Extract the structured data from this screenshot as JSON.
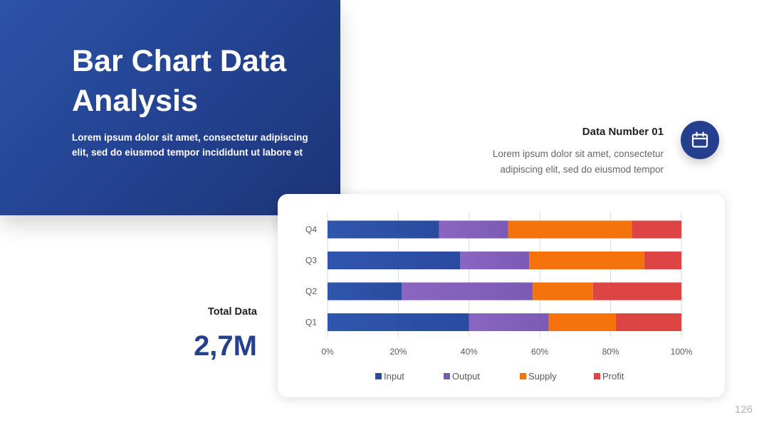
{
  "hero": {
    "title_line1": "Bar Chart Data",
    "title_line2": "Analysis",
    "body": "Lorem ipsum dolor sit amet, consectetur adipiscing elit, sed do eiusmod tempor incididunt ut labore et"
  },
  "info": {
    "title": "Data Number 01",
    "body": "Lorem ipsum dolor sit amet, consectetur adipiscing elit, sed do eiusmod tempor",
    "icon": "calendar-icon"
  },
  "total": {
    "label": "Total Data",
    "value": "2,7M"
  },
  "page_number": "126",
  "colors": {
    "primary": "#24418e",
    "input": "#2a4b9f",
    "output": "#7b5ab5",
    "supply": "#f5730d",
    "profit": "#dd4444"
  },
  "chart_data": {
    "type": "bar",
    "orientation": "horizontal",
    "stacked": "percent",
    "categories": [
      "Q1",
      "Q2",
      "Q3",
      "Q4"
    ],
    "series": [
      {
        "name": "Input",
        "values": [
          40,
          21,
          37.5,
          31.5
        ],
        "color": "#2a4b9f"
      },
      {
        "name": "Output",
        "values": [
          22.5,
          37,
          19.5,
          19.5
        ],
        "color": "#7b5ab5"
      },
      {
        "name": "Supply",
        "values": [
          19,
          17,
          32.5,
          35
        ],
        "color": "#f5730d"
      },
      {
        "name": "Profit",
        "values": [
          18.5,
          25,
          10.5,
          14
        ],
        "color": "#dd4444"
      }
    ],
    "xlim": [
      0,
      100
    ],
    "xticks": [
      "0%",
      "20%",
      "40%",
      "60%",
      "80%",
      "100%"
    ],
    "grid": true,
    "legend": "bottom"
  }
}
